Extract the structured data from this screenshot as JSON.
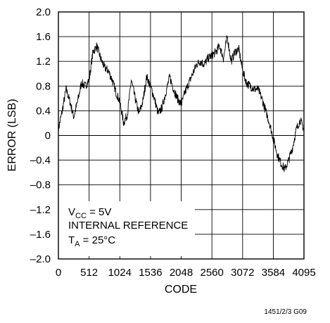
{
  "chart_data": {
    "type": "line",
    "title": "",
    "xlabel": "CODE",
    "ylabel": "ERROR (LSB)",
    "xlim": [
      0,
      4095
    ],
    "ylim": [
      -2.0,
      2.0
    ],
    "x_ticks": [
      0,
      512,
      1024,
      1536,
      2048,
      2560,
      3072,
      3584,
      4095
    ],
    "x_tick_labels": [
      "0",
      "512",
      "1024",
      "1536",
      "2048",
      "2560",
      "3072",
      "3584",
      "4095"
    ],
    "y_ticks": [
      2.0,
      1.6,
      1.2,
      0.8,
      0.4,
      0,
      -0.4,
      -0.8,
      -1.2,
      -1.6,
      -2.0
    ],
    "y_tick_labels": [
      "2.0",
      "1.6",
      "1.2",
      "0.8",
      "0.4",
      "0",
      "–0.4",
      "–0.8",
      "–1.2",
      "–1.6",
      "–2.0"
    ],
    "grid": true,
    "series": [
      {
        "color": "#000000",
        "x": [
          0,
          64,
          128,
          192,
          256,
          320,
          384,
          448,
          512,
          576,
          640,
          704,
          768,
          832,
          896,
          960,
          1024,
          1088,
          1152,
          1216,
          1280,
          1344,
          1408,
          1472,
          1536,
          1600,
          1664,
          1728,
          1792,
          1856,
          1920,
          1984,
          2048,
          2112,
          2176,
          2240,
          2304,
          2368,
          2432,
          2496,
          2560,
          2624,
          2688,
          2752,
          2816,
          2880,
          2944,
          3008,
          3072,
          3136,
          3200,
          3264,
          3328,
          3392,
          3456,
          3520,
          3584,
          3648,
          3712,
          3776,
          3840,
          3904,
          3968,
          4032,
          4095
        ],
        "y": [
          0.1,
          0.4,
          0.75,
          0.55,
          0.3,
          0.55,
          0.85,
          0.8,
          0.9,
          1.35,
          1.45,
          1.25,
          1.1,
          1.05,
          0.9,
          0.7,
          0.55,
          0.2,
          0.35,
          0.9,
          0.6,
          0.35,
          0.55,
          0.95,
          0.8,
          0.6,
          0.35,
          0.45,
          0.7,
          0.95,
          0.75,
          0.6,
          0.5,
          0.7,
          0.85,
          1.0,
          1.15,
          1.2,
          1.15,
          1.25,
          1.3,
          1.35,
          1.45,
          1.25,
          1.6,
          1.2,
          1.35,
          1.4,
          1.05,
          0.85,
          0.8,
          0.75,
          0.75,
          0.6,
          0.4,
          0.2,
          -0.05,
          -0.3,
          -0.45,
          -0.55,
          -0.4,
          -0.2,
          0.1,
          0.25,
          0.1
        ]
      }
    ],
    "annotation": {
      "line1_main": "V",
      "line1_sub": "CC",
      "line1_rest": " = 5V",
      "line2": "INTERNAL REFERENCE",
      "line3_main": "T",
      "line3_sub": "A",
      "line3_rest": " = 25°C"
    },
    "figure_code": "1451/2/3 G09"
  }
}
